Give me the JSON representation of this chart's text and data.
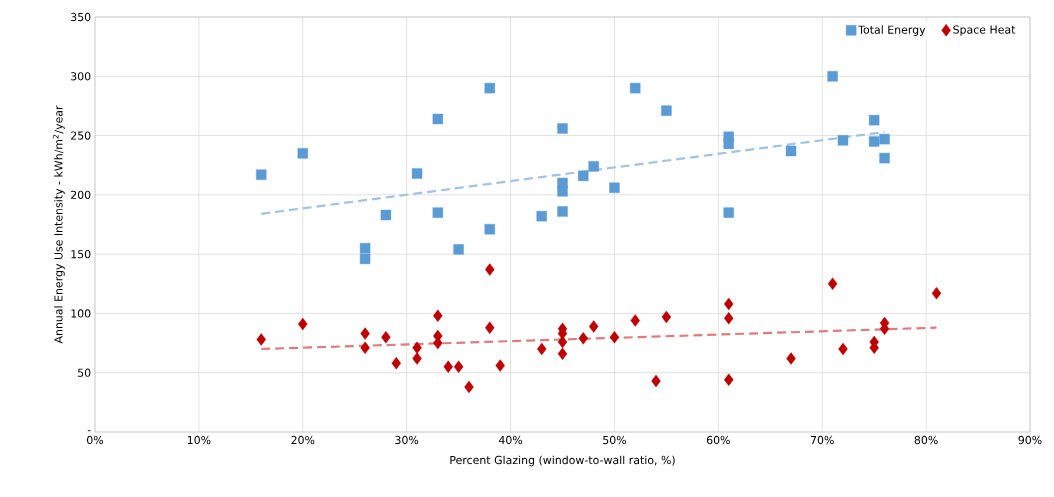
{
  "chart_data": {
    "type": "scatter",
    "xlabel": "Percent Glazing (window-to-wall ratio, %)",
    "ylabel": "Annual Energy Use Intensity - kWh/m$^{2}$/year",
    "xlim": [
      0,
      90
    ],
    "ylim": [
      0,
      350
    ],
    "xticks": [
      {
        "value": 0,
        "label": "0%"
      },
      {
        "value": 10,
        "label": "10%"
      },
      {
        "value": 20,
        "label": "20%"
      },
      {
        "value": 30,
        "label": "30%"
      },
      {
        "value": 40,
        "label": "40%"
      },
      {
        "value": 50,
        "label": "50%"
      },
      {
        "value": 60,
        "label": "60%"
      },
      {
        "value": 70,
        "label": "70%"
      },
      {
        "value": 80,
        "label": "80%"
      },
      {
        "value": 90,
        "label": "90%"
      }
    ],
    "yticks": [
      {
        "value": 0,
        "label": "-"
      },
      50,
      100,
      150,
      200,
      250,
      300,
      350
    ],
    "grid": true,
    "legend": "top right",
    "series": [
      {
        "name": "Total Energy",
        "color": "#5b9bd5",
        "marker": "square",
        "x": [
          16,
          20,
          26,
          26,
          28,
          31,
          33,
          33,
          35,
          38,
          38,
          43,
          45,
          45,
          45,
          45,
          47,
          48,
          50,
          52,
          55,
          61,
          61,
          61,
          67,
          71,
          72,
          75,
          75,
          76,
          76
        ],
        "values": [
          217,
          235,
          155,
          146,
          183,
          218,
          264,
          185,
          154,
          290,
          171,
          182,
          256,
          210,
          203,
          186,
          216,
          224,
          206,
          290,
          271,
          249,
          243,
          185,
          237,
          300,
          246,
          263,
          245,
          247,
          231
        ]
      },
      {
        "name": "Space Heat",
        "color": "#c00000",
        "marker": "diamond",
        "x": [
          16,
          20,
          26,
          26,
          28,
          29,
          31,
          31,
          33,
          33,
          33,
          34,
          35,
          36,
          38,
          38,
          39,
          43,
          45,
          45,
          45,
          45,
          47,
          48,
          50,
          52,
          54,
          55,
          61,
          61,
          61,
          67,
          71,
          72,
          75,
          75,
          76,
          76,
          81
        ],
        "values": [
          78,
          91,
          83,
          71,
          80,
          58,
          71,
          62,
          98,
          81,
          75,
          55,
          55,
          38,
          137,
          88,
          56,
          70,
          87,
          83,
          76,
          66,
          79,
          89,
          80,
          94,
          43,
          97,
          108,
          96,
          44,
          62,
          125,
          70,
          76,
          71,
          87,
          92,
          117
        ]
      },
      {
        "type": "line",
        "color": "#9dc3e6",
        "line_style": "dashed",
        "marker": "none",
        "x": [
          16,
          76
        ],
        "values": [
          184,
          253
        ]
      },
      {
        "type": "line",
        "color": "#e07b7b",
        "line_style": "dashed",
        "marker": "none",
        "x": [
          16,
          81
        ],
        "values": [
          70,
          88
        ]
      }
    ]
  }
}
